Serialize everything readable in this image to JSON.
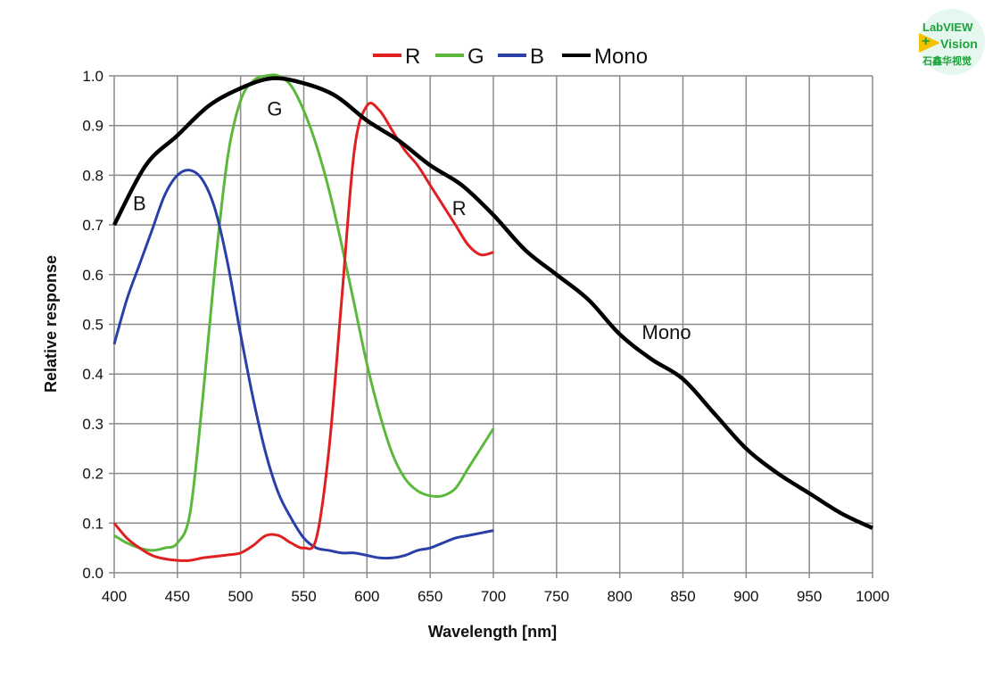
{
  "chart_data": {
    "type": "line",
    "title": "",
    "xlabel": "Wavelength [nm]",
    "ylabel": "Relative response",
    "xlim": [
      400,
      1000
    ],
    "ylim": [
      0,
      1.0
    ],
    "xticks": [
      "400",
      "450",
      "500",
      "550",
      "600",
      "650",
      "700",
      "750",
      "800",
      "850",
      "900",
      "950",
      "1000"
    ],
    "yticks": [
      "0.0",
      "0.1",
      "0.2",
      "0.3",
      "0.4",
      "0.5",
      "0.6",
      "0.7",
      "0.8",
      "0.9",
      "1.0"
    ],
    "grid": true,
    "legend_position": "top",
    "series": [
      {
        "name": "R",
        "color": "#e02020",
        "x": [
          400,
          410,
          420,
          430,
          440,
          450,
          460,
          470,
          480,
          490,
          500,
          510,
          520,
          530,
          540,
          550,
          560,
          570,
          580,
          590,
          600,
          610,
          620,
          630,
          640,
          650,
          660,
          670,
          680,
          690,
          700
        ],
        "y": [
          0.1,
          0.07,
          0.05,
          0.035,
          0.028,
          0.025,
          0.025,
          0.03,
          0.033,
          0.036,
          0.04,
          0.055,
          0.075,
          0.075,
          0.06,
          0.05,
          0.07,
          0.25,
          0.55,
          0.85,
          0.94,
          0.93,
          0.89,
          0.85,
          0.82,
          0.78,
          0.74,
          0.7,
          0.66,
          0.64,
          0.645
        ]
      },
      {
        "name": "G",
        "color": "#5cb83c",
        "x": [
          400,
          410,
          420,
          430,
          440,
          450,
          460,
          470,
          480,
          490,
          500,
          510,
          520,
          530,
          540,
          550,
          560,
          570,
          580,
          590,
          600,
          610,
          620,
          630,
          640,
          650,
          660,
          670,
          680,
          690,
          700
        ],
        "y": [
          0.075,
          0.06,
          0.05,
          0.045,
          0.05,
          0.06,
          0.12,
          0.35,
          0.62,
          0.84,
          0.95,
          0.99,
          1.0,
          1.0,
          0.98,
          0.93,
          0.86,
          0.77,
          0.66,
          0.54,
          0.42,
          0.32,
          0.24,
          0.19,
          0.165,
          0.155,
          0.155,
          0.17,
          0.21,
          0.25,
          0.29
        ]
      },
      {
        "name": "B",
        "color": "#2a3fa8",
        "x": [
          400,
          410,
          420,
          430,
          440,
          450,
          460,
          470,
          480,
          490,
          500,
          510,
          520,
          530,
          540,
          550,
          560,
          570,
          580,
          590,
          600,
          610,
          620,
          630,
          640,
          650,
          660,
          670,
          680,
          690,
          700
        ],
        "y": [
          0.46,
          0.55,
          0.62,
          0.69,
          0.76,
          0.8,
          0.81,
          0.79,
          0.73,
          0.62,
          0.48,
          0.35,
          0.24,
          0.16,
          0.11,
          0.07,
          0.05,
          0.045,
          0.04,
          0.04,
          0.035,
          0.03,
          0.03,
          0.035,
          0.045,
          0.05,
          0.06,
          0.07,
          0.075,
          0.08,
          0.085
        ]
      },
      {
        "name": "Mono",
        "color": "#000000",
        "x": [
          400,
          425,
          450,
          475,
          500,
          525,
          550,
          575,
          600,
          625,
          650,
          675,
          700,
          725,
          750,
          775,
          800,
          825,
          850,
          875,
          900,
          925,
          950,
          975,
          1000
        ],
        "y": [
          0.7,
          0.82,
          0.88,
          0.94,
          0.975,
          0.995,
          0.985,
          0.96,
          0.91,
          0.87,
          0.82,
          0.78,
          0.72,
          0.65,
          0.6,
          0.55,
          0.48,
          0.43,
          0.39,
          0.32,
          0.25,
          0.2,
          0.16,
          0.12,
          0.09
        ]
      }
    ],
    "annotations": [
      {
        "text": "B",
        "x": 420,
        "y": 0.73
      },
      {
        "text": "G",
        "x": 527,
        "y": 0.92
      },
      {
        "text": "R",
        "x": 673,
        "y": 0.72
      },
      {
        "text": "Mono",
        "x": 837,
        "y": 0.47
      }
    ]
  },
  "logo": {
    "line1": "LabVIEW",
    "line2": "Vision",
    "line3": "石鑫华视觉"
  }
}
